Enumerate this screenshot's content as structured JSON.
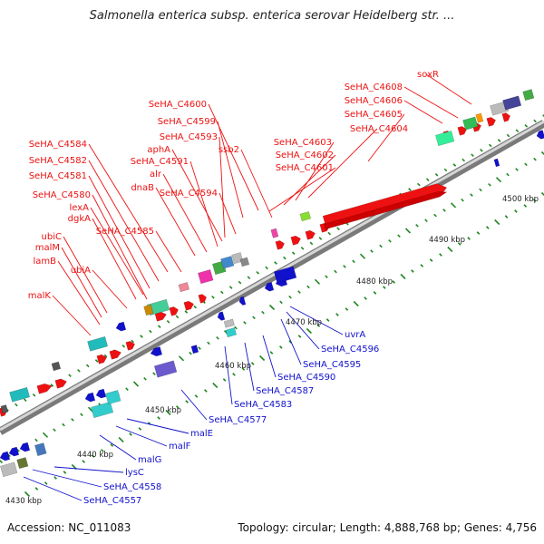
{
  "title": "Salmonella enterica subsp. enterica serovar Heidelberg str. ...",
  "footer": {
    "accession": "Accession: NC_011083",
    "stats": "Topology: circular; Length: 4,888,768 bp; Genes: 4,756"
  },
  "colors": {
    "forward": "#ee1111",
    "reverse": "#1111cc",
    "backbone": "#9a9a9a",
    "tick": "#228822"
  },
  "scale": {
    "labels": [
      "4430 kbp",
      "4440 kbp",
      "4450 kbp",
      "4460 kbp",
      "4470 kbp",
      "4480 kbp",
      "4490 kbp",
      "4500 kbp"
    ]
  },
  "labels_top": [
    "soxR",
    "SeHA_C4608",
    "SeHA_C4606",
    "SeHA_C4605",
    "SeHA_C4604",
    "SeHA_C4603",
    "SeHA_C4602",
    "SeHA_C4601",
    "ssb2",
    "SeHA_C4600",
    "SeHA_C4599",
    "SeHA_C4593",
    "aphA",
    "SeHA_C4591",
    "alr",
    "dnaB",
    "SeHA_C4594",
    "SeHA_C4584",
    "SeHA_C4582",
    "SeHA_C4581",
    "SeHA_C4580",
    "lexA",
    "dgkA",
    "SeHA_C4585",
    "ubiC",
    "malM",
    "lamB",
    "ubiA",
    "malK"
  ],
  "labels_bottom": [
    "uvrA",
    "SeHA_C4596",
    "SeHA_C4595",
    "SeHA_C4590",
    "SeHA_C4587",
    "SeHA_C4583",
    "SeHA_C4577",
    "malE",
    "malF",
    "malG",
    "lysC",
    "SeHA_C4558",
    "SeHA_C4557"
  ]
}
